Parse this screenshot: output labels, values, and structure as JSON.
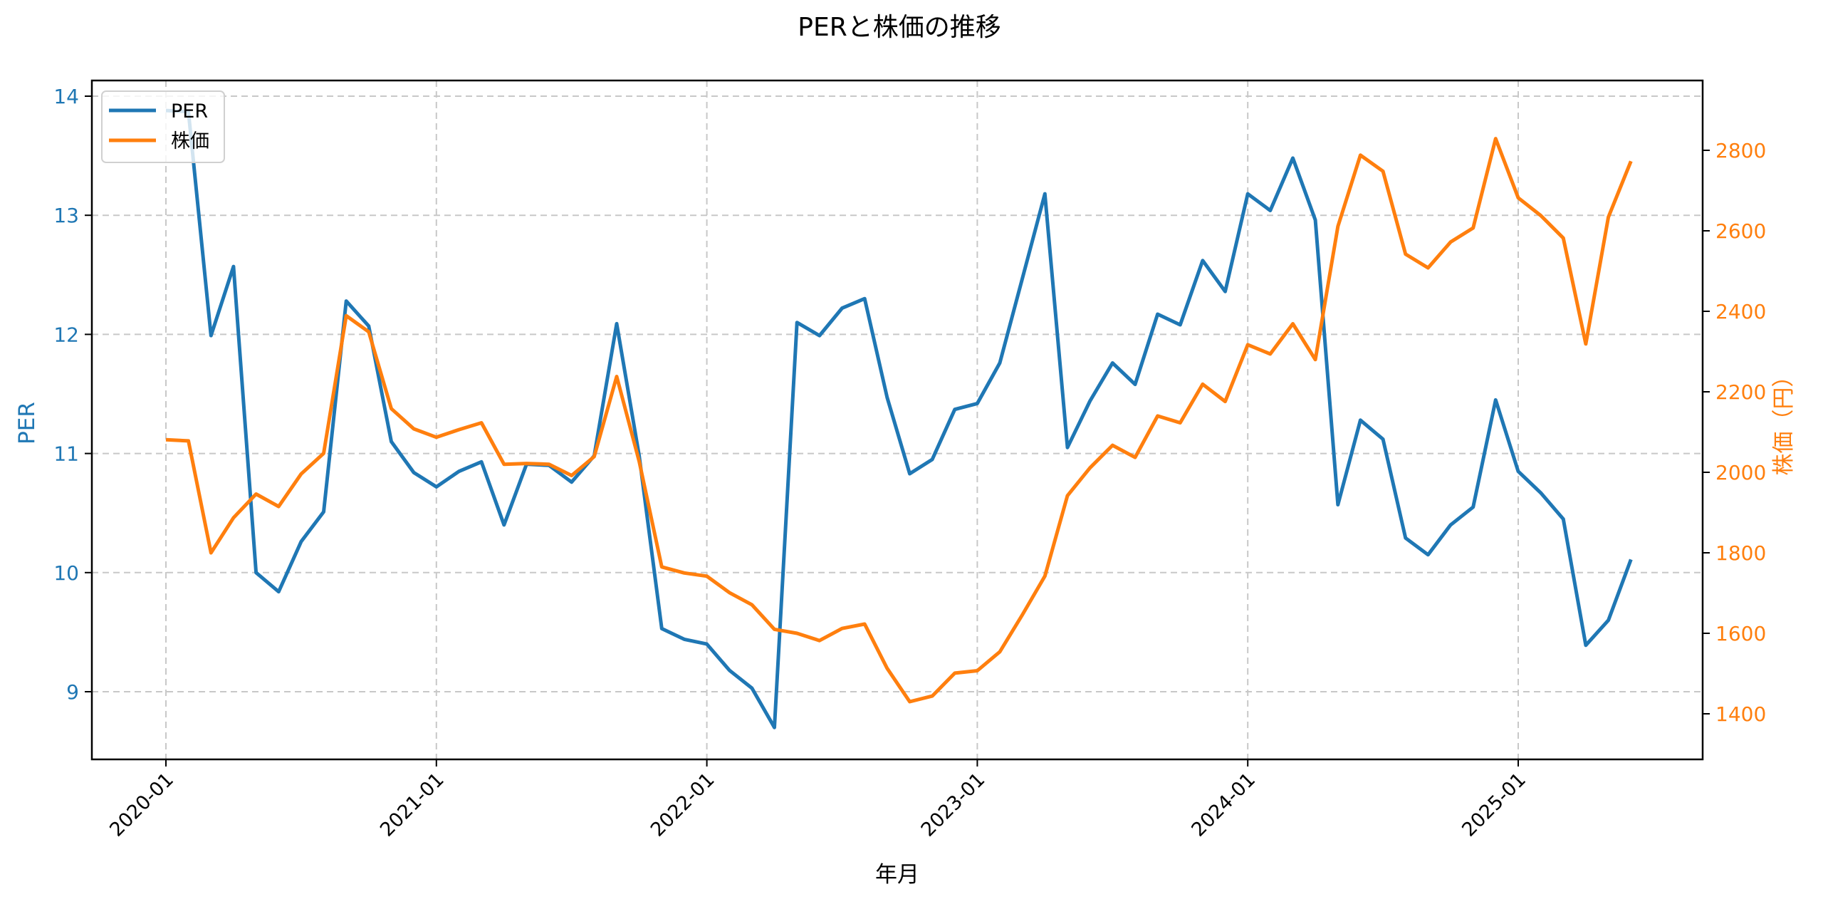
{
  "chart_data": {
    "type": "line",
    "title": "PERと株価の推移",
    "xlabel": "年月",
    "ylabel_left": "PER",
    "ylabel_right": "株価（円）",
    "x_tick_labels": [
      "2020-01",
      "2021-01",
      "2022-01",
      "2023-01",
      "2024-01",
      "2025-01"
    ],
    "y_left_ticks": [
      9,
      10,
      11,
      12,
      13,
      14
    ],
    "y_right_ticks": [
      1400,
      1600,
      1800,
      2000,
      2200,
      2400,
      2600,
      2800
    ],
    "y_left_range": [
      8.45,
      14.13
    ],
    "y_right_range": [
      1290,
      2960
    ],
    "grid": true,
    "legend_position": "upper left",
    "x": [
      "2020-01",
      "2020-02",
      "2020-03",
      "2020-04",
      "2020-05",
      "2020-06",
      "2020-07",
      "2020-08",
      "2020-09",
      "2020-10",
      "2020-11",
      "2020-12",
      "2021-01",
      "2021-02",
      "2021-03",
      "2021-04",
      "2021-05",
      "2021-06",
      "2021-07",
      "2021-08",
      "2021-09",
      "2021-10",
      "2021-11",
      "2021-12",
      "2022-01",
      "2022-02",
      "2022-03",
      "2022-04",
      "2022-05",
      "2022-06",
      "2022-07",
      "2022-08",
      "2022-09",
      "2022-10",
      "2022-11",
      "2022-12",
      "2023-01",
      "2023-02",
      "2023-03",
      "2023-04",
      "2023-05",
      "2023-06",
      "2023-07",
      "2023-08",
      "2023-09",
      "2023-10",
      "2023-11",
      "2023-12",
      "2024-01",
      "2024-02",
      "2024-03",
      "2024-04",
      "2024-05",
      "2024-06",
      "2024-07",
      "2024-08",
      "2024-09",
      "2024-10",
      "2024-11",
      "2024-12",
      "2025-01",
      "2025-02",
      "2025-03",
      "2025-04",
      "2025-05",
      "2025-06"
    ],
    "series": [
      {
        "name": "PER",
        "axis": "left",
        "color": "#1f77b4",
        "values": [
          13.88,
          13.87,
          11.99,
          12.57,
          10.0,
          9.84,
          10.26,
          10.51,
          12.28,
          12.07,
          11.1,
          10.84,
          10.72,
          10.85,
          10.93,
          10.4,
          10.91,
          10.9,
          10.76,
          10.98,
          12.09,
          10.98,
          9.53,
          9.44,
          9.4,
          9.18,
          9.03,
          8.7,
          12.1,
          11.99,
          12.22,
          12.3,
          11.47,
          10.83,
          10.95,
          11.37,
          11.42,
          11.76,
          12.47,
          13.18,
          11.05,
          11.44,
          11.76,
          11.58,
          12.17,
          12.08,
          12.62,
          12.36,
          13.18,
          13.04,
          13.48,
          12.96,
          10.57,
          11.28,
          11.12,
          10.29,
          10.15,
          10.4,
          10.55,
          11.45,
          10.85,
          10.67,
          10.45,
          9.39,
          9.6,
          10.11
        ]
      },
      {
        "name": "株価",
        "axis": "right",
        "color": "#ff7f0e",
        "values": [
          2081,
          2078,
          1800,
          1887,
          1946,
          1915,
          1996,
          2047,
          2389,
          2349,
          2158,
          2108,
          2087,
          2106,
          2123,
          2020,
          2022,
          2020,
          1992,
          2039,
          2238,
          2027,
          1765,
          1750,
          1742,
          1701,
          1671,
          1610,
          1600,
          1582,
          1612,
          1623,
          1513,
          1430,
          1444,
          1501,
          1507,
          1554,
          1646,
          1742,
          1942,
          2011,
          2067,
          2037,
          2140,
          2123,
          2219,
          2176,
          2317,
          2294,
          2369,
          2280,
          2611,
          2788,
          2748,
          2542,
          2508,
          2572,
          2607,
          2829,
          2682,
          2638,
          2582,
          2319,
          2634,
          2773
        ]
      }
    ]
  },
  "legend": {
    "items": [
      {
        "label": "PER",
        "color": "#1f77b4"
      },
      {
        "label": "株価",
        "color": "#ff7f0e"
      }
    ]
  },
  "colors": {
    "per": "#1f77b4",
    "price": "#ff7f0e",
    "grid": "#c8c8c8"
  }
}
